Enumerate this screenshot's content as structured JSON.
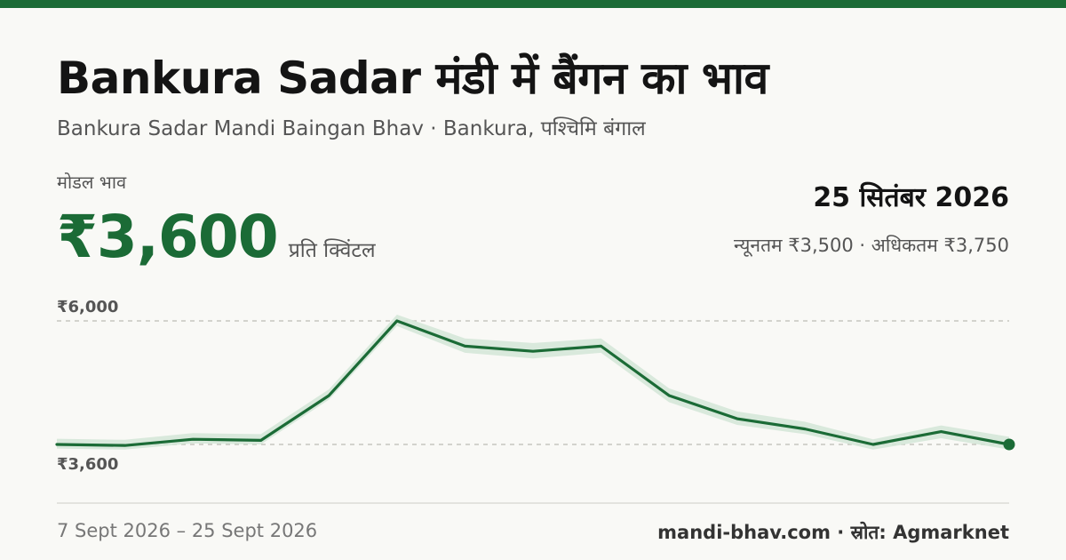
{
  "header": {
    "title": "Bankura Sadar मंडी में बैंगन का भाव",
    "subtitle": "Bankura Sadar Mandi Baingan Bhav · Bankura, पश्चिमि बंगाल"
  },
  "price": {
    "label": "मोडल भाव",
    "value": "₹3,600",
    "unit": "प्रति क्विंटल",
    "date": "25 सितंबर 2026",
    "range": "न्यूनतम ₹3,500 · अधिकतम ₹3,750"
  },
  "chart_data": {
    "type": "line",
    "y_tick_labels": [
      "₹6,000",
      "₹3,600"
    ],
    "y_ticks": [
      6000,
      3600
    ],
    "ylim": [
      3200,
      6300
    ],
    "series": [
      {
        "values": [
          3600,
          3580,
          3700,
          3680,
          4550,
          6000,
          5510,
          5410,
          5510,
          4550,
          4100,
          3900,
          3600,
          3850,
          3600
        ],
        "band_min": [
          3520,
          3500,
          3620,
          3600,
          4470,
          5900,
          5380,
          5270,
          5380,
          4420,
          3980,
          3800,
          3500,
          3720,
          3500
        ],
        "band_max": [
          3710,
          3690,
          3820,
          3800,
          4670,
          6120,
          5660,
          5570,
          5660,
          4690,
          4240,
          4040,
          3700,
          3970,
          3750
        ]
      }
    ],
    "colors": {
      "line": "#1b6b36",
      "band": "#d4e6d7",
      "grid": "#bdbdb5"
    },
    "grid": "dashed at tick values"
  },
  "footer": {
    "date_range": "7 Sept 2026 – 25 Sept 2026",
    "source": "mandi-bhav.com · स्रोत: Agmarknet"
  }
}
